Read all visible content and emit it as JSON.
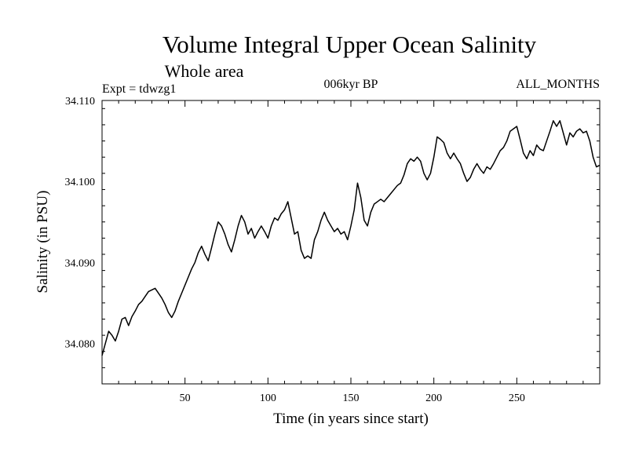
{
  "chart_data": {
    "type": "line",
    "title": "Volume Integral Upper Ocean Salinity",
    "subtitle": "Whole area",
    "info_left": "Expt = tdwzg1",
    "info_center": "006kyr BP",
    "info_right": "ALL_MONTHS",
    "xlabel": "Time (in years since start)",
    "ylabel": "Salinity (in PSU)",
    "xlim": [
      0,
      300
    ],
    "ylim": [
      34.075,
      34.11
    ],
    "x_ticks": [
      50,
      100,
      150,
      200,
      250
    ],
    "x_tick_labels": [
      "50",
      "100",
      "150",
      "200",
      "250"
    ],
    "y_ticks": [
      34.08,
      34.09,
      34.1,
      34.11
    ],
    "y_tick_labels": [
      "34.080",
      "34.090",
      "34.100",
      "34.110"
    ],
    "line_color": "#000000",
    "series": [
      {
        "name": "salinity",
        "points": [
          [
            0,
            34.0785
          ],
          [
            2,
            34.08
          ],
          [
            4,
            34.0815
          ],
          [
            6,
            34.081
          ],
          [
            8,
            34.0803
          ],
          [
            10,
            34.0815
          ],
          [
            12,
            34.083
          ],
          [
            14,
            34.0832
          ],
          [
            16,
            34.0822
          ],
          [
            18,
            34.0833
          ],
          [
            20,
            34.084
          ],
          [
            22,
            34.0848
          ],
          [
            24,
            34.0852
          ],
          [
            26,
            34.0858
          ],
          [
            28,
            34.0864
          ],
          [
            30,
            34.0866
          ],
          [
            32,
            34.0868
          ],
          [
            34,
            34.0862
          ],
          [
            36,
            34.0856
          ],
          [
            38,
            34.0848
          ],
          [
            40,
            34.0838
          ],
          [
            42,
            34.0832
          ],
          [
            44,
            34.084
          ],
          [
            46,
            34.0852
          ],
          [
            48,
            34.0862
          ],
          [
            50,
            34.0872
          ],
          [
            52,
            34.0882
          ],
          [
            54,
            34.0892
          ],
          [
            56,
            34.09
          ],
          [
            58,
            34.0912
          ],
          [
            60,
            34.092
          ],
          [
            62,
            34.091
          ],
          [
            64,
            34.0902
          ],
          [
            66,
            34.0918
          ],
          [
            68,
            34.0935
          ],
          [
            70,
            34.095
          ],
          [
            72,
            34.0945
          ],
          [
            74,
            34.0935
          ],
          [
            76,
            34.0922
          ],
          [
            78,
            34.0913
          ],
          [
            80,
            34.0928
          ],
          [
            82,
            34.0945
          ],
          [
            84,
            34.0958
          ],
          [
            86,
            34.095
          ],
          [
            88,
            34.0935
          ],
          [
            90,
            34.0942
          ],
          [
            92,
            34.093
          ],
          [
            94,
            34.0938
          ],
          [
            96,
            34.0945
          ],
          [
            98,
            34.0938
          ],
          [
            100,
            34.093
          ],
          [
            102,
            34.0945
          ],
          [
            104,
            34.0955
          ],
          [
            106,
            34.0952
          ],
          [
            108,
            34.096
          ],
          [
            110,
            34.0965
          ],
          [
            112,
            34.0975
          ],
          [
            114,
            34.0955
          ],
          [
            116,
            34.0935
          ],
          [
            118,
            34.0938
          ],
          [
            120,
            34.0915
          ],
          [
            122,
            34.0905
          ],
          [
            124,
            34.0908
          ],
          [
            126,
            34.0905
          ],
          [
            128,
            34.0928
          ],
          [
            130,
            34.0938
          ],
          [
            132,
            34.0952
          ],
          [
            134,
            34.0962
          ],
          [
            136,
            34.0952
          ],
          [
            138,
            34.0945
          ],
          [
            140,
            34.0938
          ],
          [
            142,
            34.0942
          ],
          [
            144,
            34.0935
          ],
          [
            146,
            34.0938
          ],
          [
            148,
            34.0928
          ],
          [
            150,
            34.0945
          ],
          [
            152,
            34.0965
          ],
          [
            154,
            34.0998
          ],
          [
            156,
            34.098
          ],
          [
            158,
            34.0952
          ],
          [
            160,
            34.0945
          ],
          [
            162,
            34.0962
          ],
          [
            164,
            34.0972
          ],
          [
            166,
            34.0975
          ],
          [
            168,
            34.0978
          ],
          [
            170,
            34.0975
          ],
          [
            172,
            34.098
          ],
          [
            174,
            34.0985
          ],
          [
            176,
            34.099
          ],
          [
            178,
            34.0995
          ],
          [
            180,
            34.0998
          ],
          [
            182,
            34.1008
          ],
          [
            184,
            34.1022
          ],
          [
            186,
            34.1028
          ],
          [
            188,
            34.1025
          ],
          [
            190,
            34.103
          ],
          [
            192,
            34.1025
          ],
          [
            194,
            34.101
          ],
          [
            196,
            34.1002
          ],
          [
            198,
            34.101
          ],
          [
            200,
            34.103
          ],
          [
            202,
            34.1055
          ],
          [
            204,
            34.1052
          ],
          [
            206,
            34.1048
          ],
          [
            208,
            34.1035
          ],
          [
            210,
            34.1028
          ],
          [
            212,
            34.1035
          ],
          [
            214,
            34.1028
          ],
          [
            216,
            34.1022
          ],
          [
            218,
            34.101
          ],
          [
            220,
            34.1
          ],
          [
            222,
            34.1005
          ],
          [
            224,
            34.1015
          ],
          [
            226,
            34.1022
          ],
          [
            228,
            34.1015
          ],
          [
            230,
            34.101
          ],
          [
            232,
            34.1018
          ],
          [
            234,
            34.1015
          ],
          [
            236,
            34.1022
          ],
          [
            238,
            34.103
          ],
          [
            240,
            34.1038
          ],
          [
            242,
            34.1042
          ],
          [
            244,
            34.105
          ],
          [
            246,
            34.1062
          ],
          [
            248,
            34.1065
          ],
          [
            250,
            34.1068
          ],
          [
            252,
            34.1052
          ],
          [
            254,
            34.1035
          ],
          [
            256,
            34.1028
          ],
          [
            258,
            34.1038
          ],
          [
            260,
            34.1032
          ],
          [
            262,
            34.1045
          ],
          [
            264,
            34.104
          ],
          [
            266,
            34.1038
          ],
          [
            268,
            34.105
          ],
          [
            270,
            34.1062
          ],
          [
            272,
            34.1075
          ],
          [
            274,
            34.1068
          ],
          [
            276,
            34.1075
          ],
          [
            278,
            34.106
          ],
          [
            280,
            34.1045
          ],
          [
            282,
            34.106
          ],
          [
            284,
            34.1055
          ],
          [
            286,
            34.1062
          ],
          [
            288,
            34.1065
          ],
          [
            290,
            34.106
          ],
          [
            292,
            34.1062
          ],
          [
            294,
            34.105
          ],
          [
            296,
            34.103
          ],
          [
            298,
            34.1018
          ],
          [
            300,
            34.102
          ]
        ]
      }
    ]
  }
}
